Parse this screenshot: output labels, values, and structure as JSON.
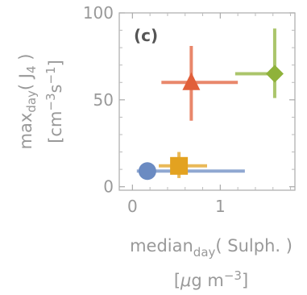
{
  "chart_data": {
    "type": "scatter",
    "panel_label": "(c)",
    "xlabel": {
      "line1": {
        "main": "median",
        "sub": "day",
        "rest": "( Sulph. )"
      },
      "line2": {
        "open": "[",
        "mu": "μ",
        "unit": "g m",
        "sup": "−3",
        "close": "]"
      }
    },
    "ylabel": {
      "line1": {
        "main": "max",
        "sub": "day",
        "open": "( J",
        "jsub": "4",
        "close": " )"
      },
      "line2": {
        "open": "[cm",
        "sup1": "−3",
        "mid": "s",
        "sup2": "−1",
        "close": "]"
      }
    },
    "xlim": [
      -0.15,
      1.85
    ],
    "ylim": [
      -2,
      100
    ],
    "x_ticks": [
      0,
      1
    ],
    "x_tick_labels": [
      "0",
      "1"
    ],
    "y_ticks": [
      0,
      50,
      100
    ],
    "y_tick_labels": [
      "0",
      "50",
      "100"
    ],
    "series": [
      {
        "marker": "circle",
        "color": "#6b8bc2",
        "x": 0.17,
        "y": 9,
        "x_err": [
          0.05,
          1.28
        ],
        "y_err": [
          8,
          10
        ]
      },
      {
        "marker": "square",
        "color": "#e3a220",
        "x": 0.53,
        "y": 12,
        "x_err": [
          0.3,
          0.85
        ],
        "y_err": [
          5,
          20
        ]
      },
      {
        "marker": "triangle",
        "color": "#e15f3a",
        "x": 0.67,
        "y": 60,
        "x_err": [
          0.33,
          1.2
        ],
        "y_err": [
          38,
          81
        ]
      },
      {
        "marker": "diamond",
        "color": "#8fb23a",
        "x": 1.62,
        "y": 65,
        "x_err": [
          1.17,
          1.62
        ],
        "y_err": [
          51,
          91
        ]
      }
    ],
    "grid": false
  }
}
